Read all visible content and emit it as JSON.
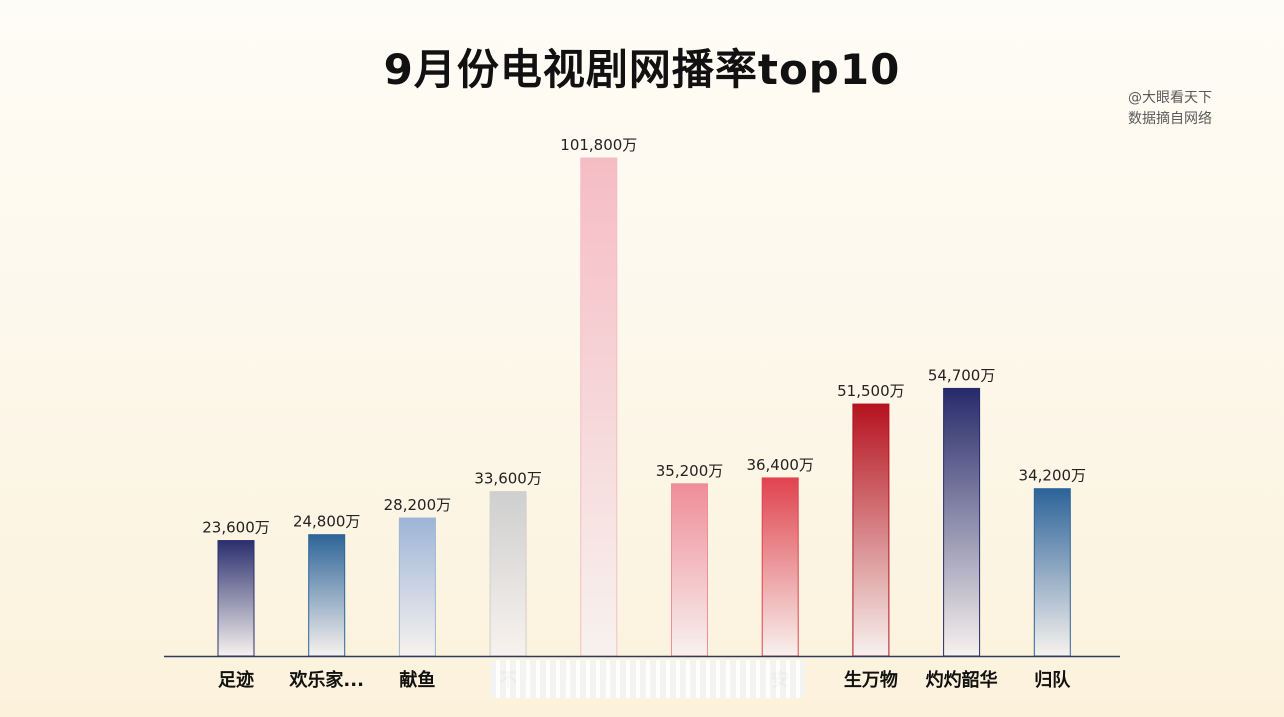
{
  "title": "9月份电视剧网播率top10",
  "watermark": {
    "line1": "@大眼看天下",
    "line2": "数据摘自网络"
  },
  "chart_data": {
    "type": "bar",
    "title": "9月份电视剧网播率top10",
    "xlabel": "",
    "ylabel": "",
    "unit": "万",
    "ylim": [
      0,
      101800
    ],
    "grid": false,
    "categories": [
      "足迹",
      "欢乐家...",
      "献鱼",
      "不",
      "",
      "",
      "安",
      "生万物",
      "灼灼韶华",
      "归队"
    ],
    "values": [
      23600,
      24800,
      28200,
      33600,
      101800,
      35200,
      36400,
      51500,
      54700,
      34200
    ],
    "data_labels": [
      "23,600万",
      "24,800万",
      "28,200万",
      "33,600万",
      "101,800万",
      "35,200万",
      "36,400万",
      "51,500万",
      "54,700万",
      "34,200万"
    ],
    "colors": [
      "#2a2f6e",
      "#2e6498",
      "#9db5d8",
      "#cfcfcf",
      "#f6bcc4",
      "#ef8d9a",
      "#e0434e",
      "#b5121e",
      "#262a6a",
      "#2c6399"
    ]
  }
}
